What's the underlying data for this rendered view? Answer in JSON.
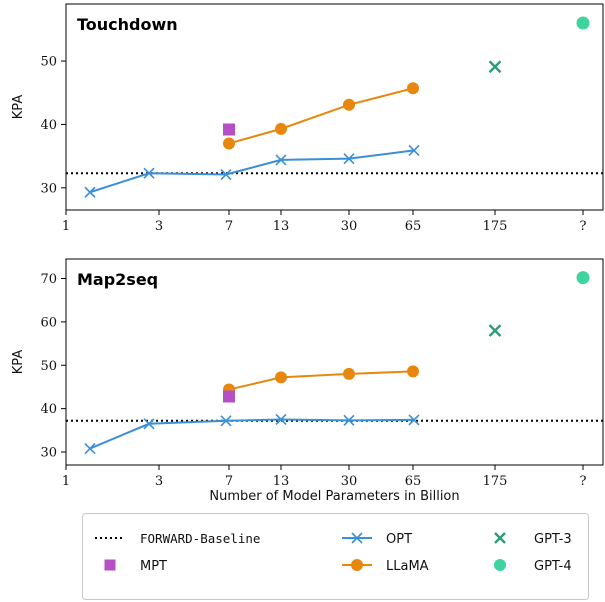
{
  "chart_data": [
    {
      "type": "line",
      "title": "Touchdown",
      "ylabel": "KPA",
      "xlabel": "",
      "x_ticks": [
        "1",
        "3",
        "7",
        "13",
        "30",
        "65",
        "175",
        "?"
      ],
      "y_ticks": [
        30,
        40,
        50
      ],
      "ylim": [
        26.5,
        59
      ],
      "baseline": 32.3,
      "series": [
        {
          "name": "OPT",
          "x": [
            "1.3",
            "2.7",
            "6.7",
            "13",
            "30",
            "66"
          ],
          "values": [
            29.3,
            32.3,
            32.1,
            34.4,
            34.6,
            35.9
          ]
        },
        {
          "name": "LLaMA",
          "x": [
            "7",
            "13",
            "30",
            "65"
          ],
          "values": [
            37.0,
            39.3,
            43.1,
            45.7
          ]
        },
        {
          "name": "MPT",
          "x": [
            "7"
          ],
          "values": [
            39.2
          ]
        },
        {
          "name": "GPT-3",
          "x": [
            "175"
          ],
          "values": [
            49.1
          ]
        },
        {
          "name": "GPT-4",
          "x": [
            "?"
          ],
          "values": [
            56.0
          ]
        }
      ]
    },
    {
      "type": "line",
      "title": "Map2seq",
      "ylabel": "KPA",
      "xlabel": "Number of Model Parameters in Billion",
      "x_ticks": [
        "1",
        "3",
        "7",
        "13",
        "30",
        "65",
        "175",
        "?"
      ],
      "y_ticks": [
        30,
        40,
        50,
        60,
        70
      ],
      "ylim": [
        27,
        74.5
      ],
      "baseline": 37.2,
      "series": [
        {
          "name": "OPT",
          "x": [
            "1.3",
            "2.7",
            "6.7",
            "13",
            "30",
            "66"
          ],
          "values": [
            30.8,
            36.5,
            37.2,
            37.5,
            37.3,
            37.4
          ]
        },
        {
          "name": "LLaMA",
          "x": [
            "7",
            "13",
            "30",
            "65"
          ],
          "values": [
            44.4,
            47.2,
            48.0,
            48.6
          ]
        },
        {
          "name": "MPT",
          "x": [
            "7"
          ],
          "values": [
            42.8
          ]
        },
        {
          "name": "GPT-3",
          "x": [
            "175"
          ],
          "values": [
            58.0
          ]
        },
        {
          "name": "GPT-4",
          "x": [
            "?"
          ],
          "values": [
            70.2
          ]
        }
      ]
    }
  ],
  "legend": {
    "placement": "bottom",
    "items": [
      {
        "name": "FORWARD-Baseline",
        "marker": "dotted-line"
      },
      {
        "name": "OPT",
        "marker": "x-line"
      },
      {
        "name": "GPT-3",
        "marker": "x"
      },
      {
        "name": "MPT",
        "marker": "square"
      },
      {
        "name": "LLaMA",
        "marker": "circle-line"
      },
      {
        "name": "GPT-4",
        "marker": "circle"
      }
    ]
  },
  "colors": {
    "OPT": "#3a8fd6",
    "LLaMA": "#e8870e",
    "MPT": "#b44fc4",
    "GPT-3": "#2a9d78",
    "GPT-4": "#3ed4a0",
    "baseline": "#000000"
  }
}
